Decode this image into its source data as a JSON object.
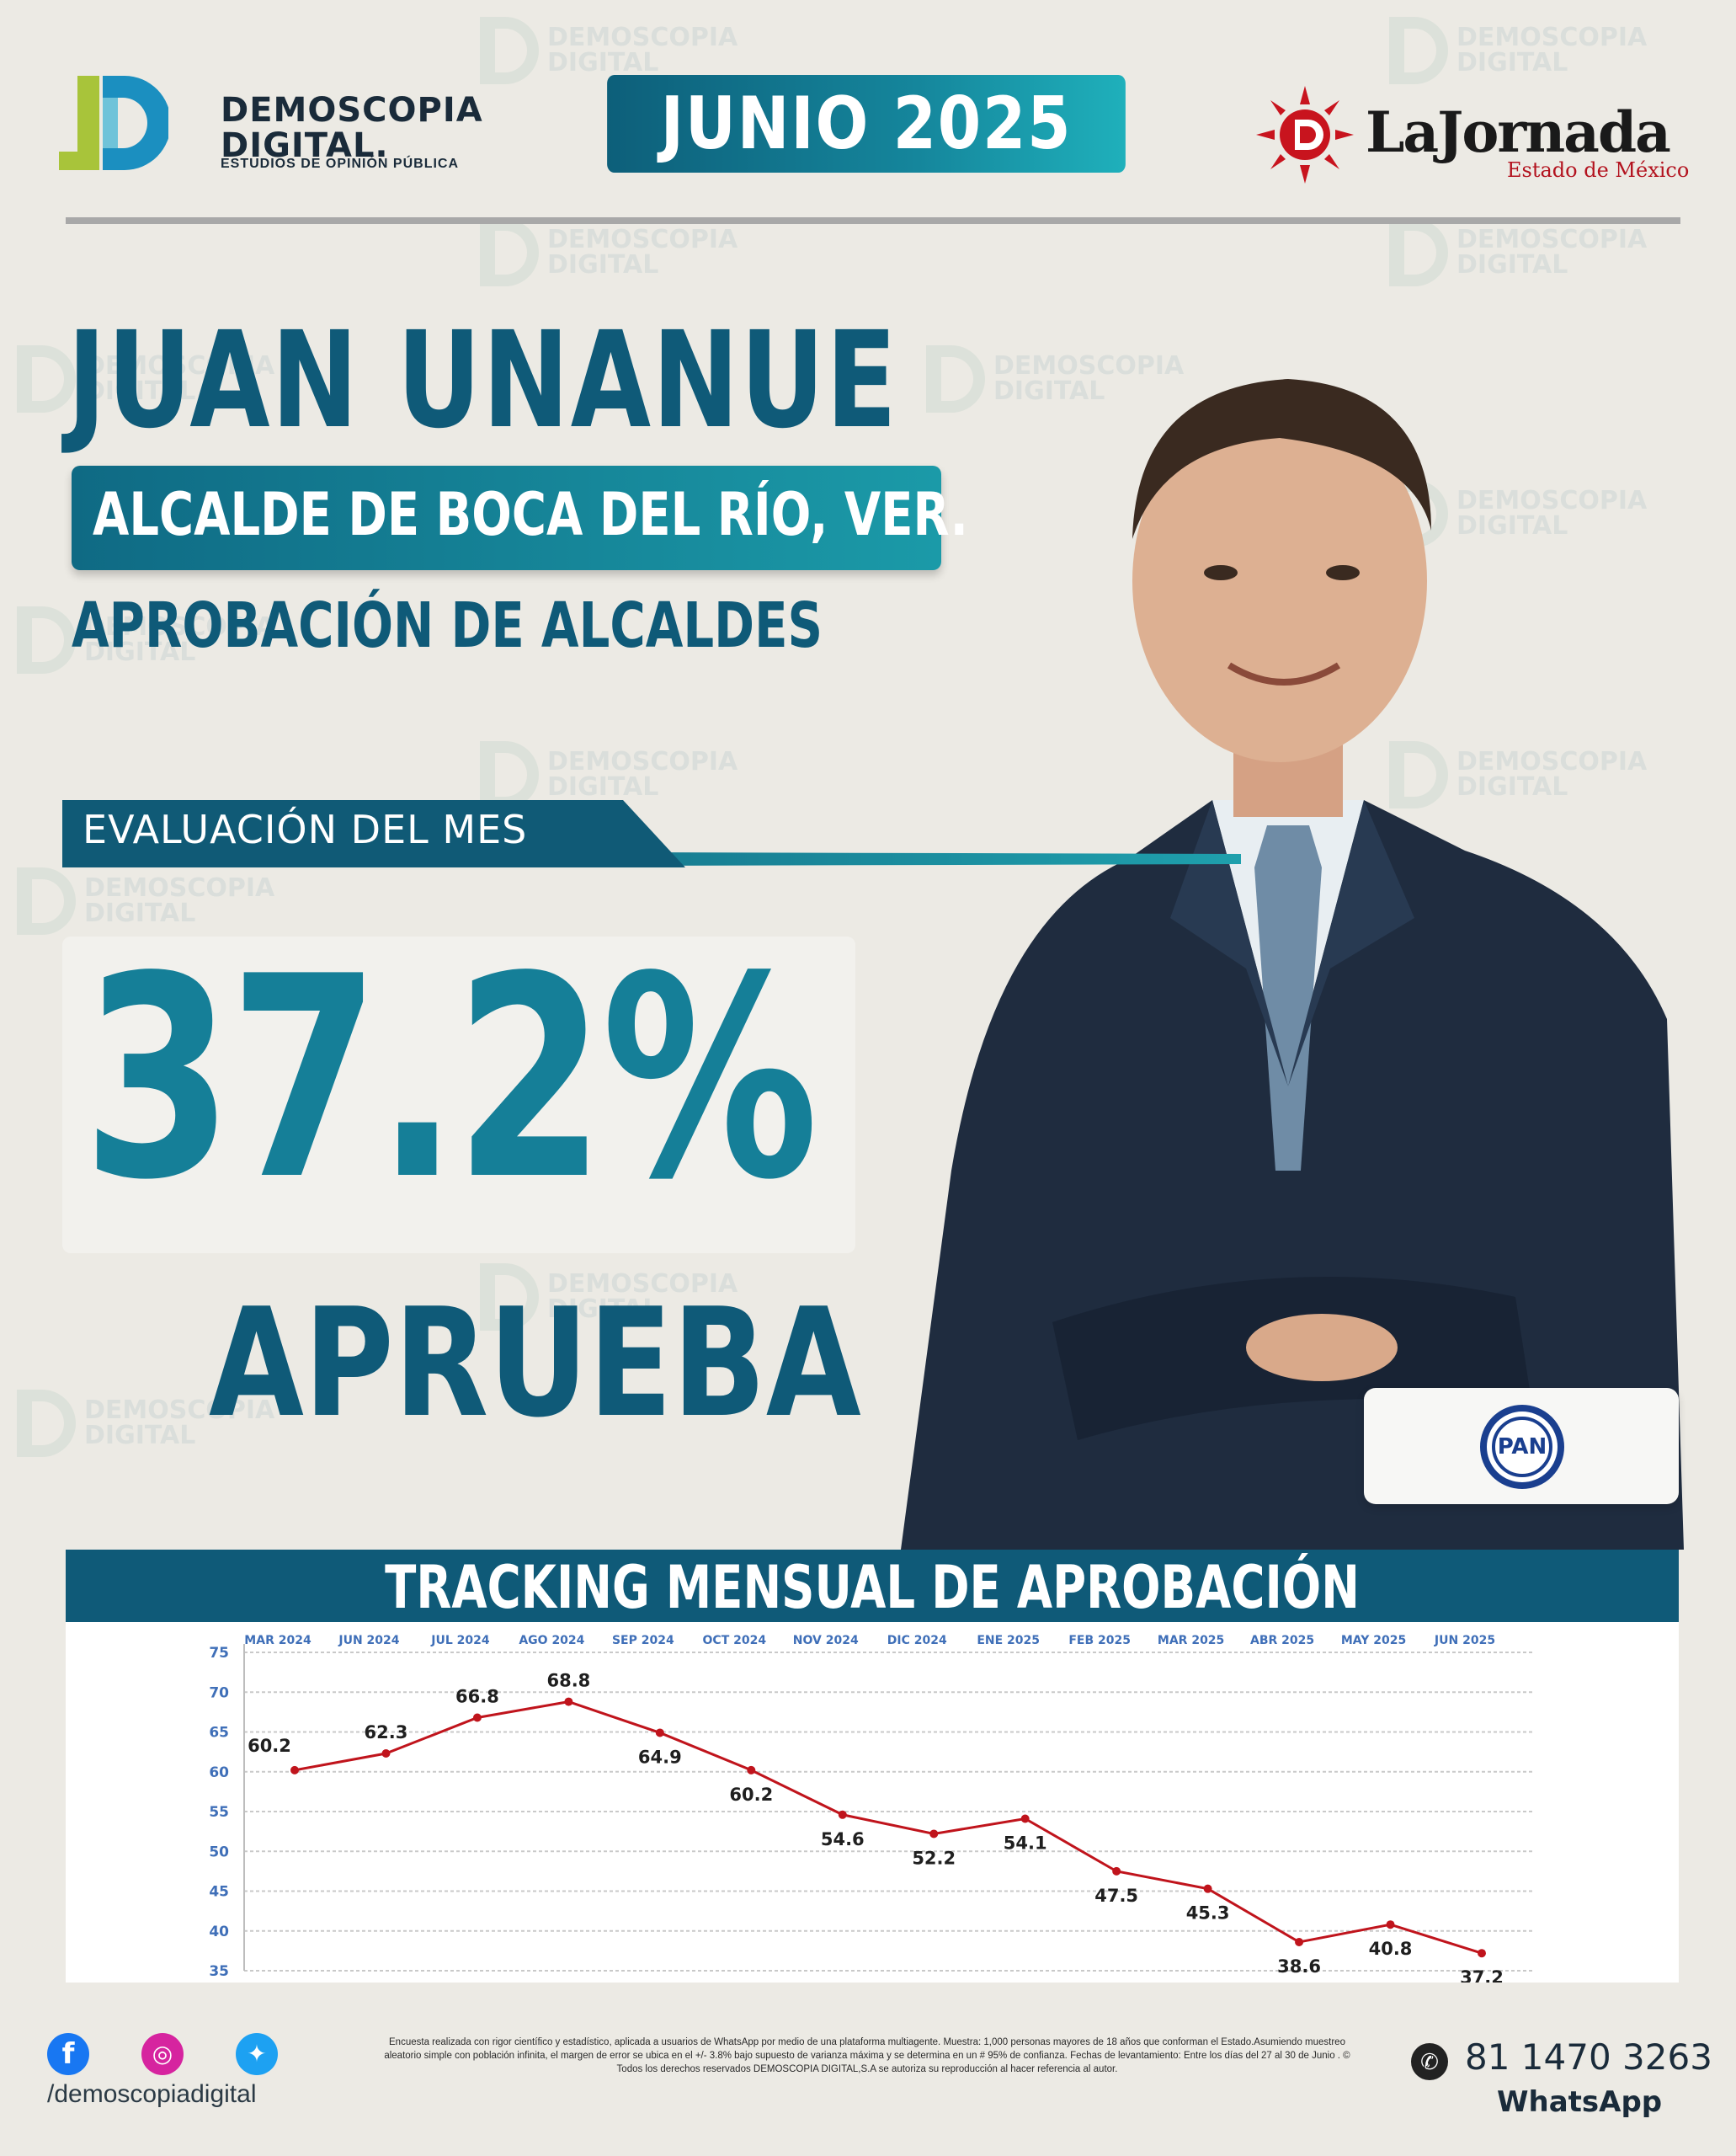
{
  "brand": {
    "name_line1": "DEMOSCOPIA",
    "name_line2": "DIGITAL.",
    "subtitle": "ESTUDIOS DE OPINIÓN PÚBLICA",
    "accent_green": "#a8c43a",
    "accent_blue": "#1b8fc0"
  },
  "header": {
    "month": "JUNIO 2025"
  },
  "partner": {
    "name": "LaJornada",
    "subtitle": "Estado de México",
    "accent": "#c8141e"
  },
  "person": {
    "name": "JUAN UNANUE",
    "role": "ALCALDE DE BOCA DEL RÍO, VER.",
    "subtitle": "APROBACIÓN DE ALCALDES"
  },
  "evaluation": {
    "label": "EVALUACIÓN DEL MES",
    "value": "37.2%",
    "verdict": "APRUEBA"
  },
  "party": {
    "label": "PAN",
    "color": "#1a3f8f"
  },
  "chart_title": "TRACKING MENSUAL DE APROBACIÓN",
  "chart_data": {
    "type": "line",
    "title": "TRACKING MENSUAL DE APROBACIÓN",
    "categories": [
      "MAR 2024",
      "JUN 2024",
      "JUL 2024",
      "AGO 2024",
      "SEP 2024",
      "OCT 2024",
      "NOV 2024",
      "DIC 2024",
      "ENE 2025",
      "FEB 2025",
      "MAR 2025",
      "ABR 2025",
      "MAY 2025",
      "JUN 2025"
    ],
    "values": [
      60.2,
      62.3,
      66.8,
      68.8,
      64.9,
      60.2,
      54.6,
      52.2,
      54.1,
      47.5,
      45.3,
      38.6,
      40.8,
      37.2
    ],
    "labels": [
      "60.2",
      "62.3",
      "66.8",
      "68.8",
      "64.9",
      "60.2",
      "54.6",
      "52.2",
      "54.1",
      "47.5",
      "45.3",
      "38.6",
      "40.8",
      "37.2"
    ],
    "y_ticks": [
      35,
      40,
      45,
      50,
      55,
      60,
      65,
      70,
      75
    ],
    "ylim": [
      35,
      75
    ],
    "grid": true,
    "line_color": "#c0141c",
    "tick_color": "#3f6fb8"
  },
  "footer": {
    "handle": "/demoscopiadigital",
    "disclaimer": "Encuesta realizada con rigor científico y estadístico, aplicada a usuarios de WhatsApp por medio de una plataforma multiagente. Muestra: 1,000 personas mayores de 18 años que conforman el Estado.Asumiendo muestreo aleatorio simple con población infinita, el margen de error se ubica en el +/- 3.8% bajo supuesto de varianza máxima y se determina en un # 95% de confianza. Fechas de levantamiento: Entre los días del 27 al 30 de Junio . © Todos los derechos reservados DEMOSCOPIA DIGITAL,S.A se autoriza su reproducción al hacer referencia al autor.",
    "phone": "81 1470 3263",
    "whatsapp": "WhatsApp",
    "facebook_color": "#1877f2",
    "instagram_color": "#d6249f",
    "twitter_color": "#1da1f2"
  }
}
